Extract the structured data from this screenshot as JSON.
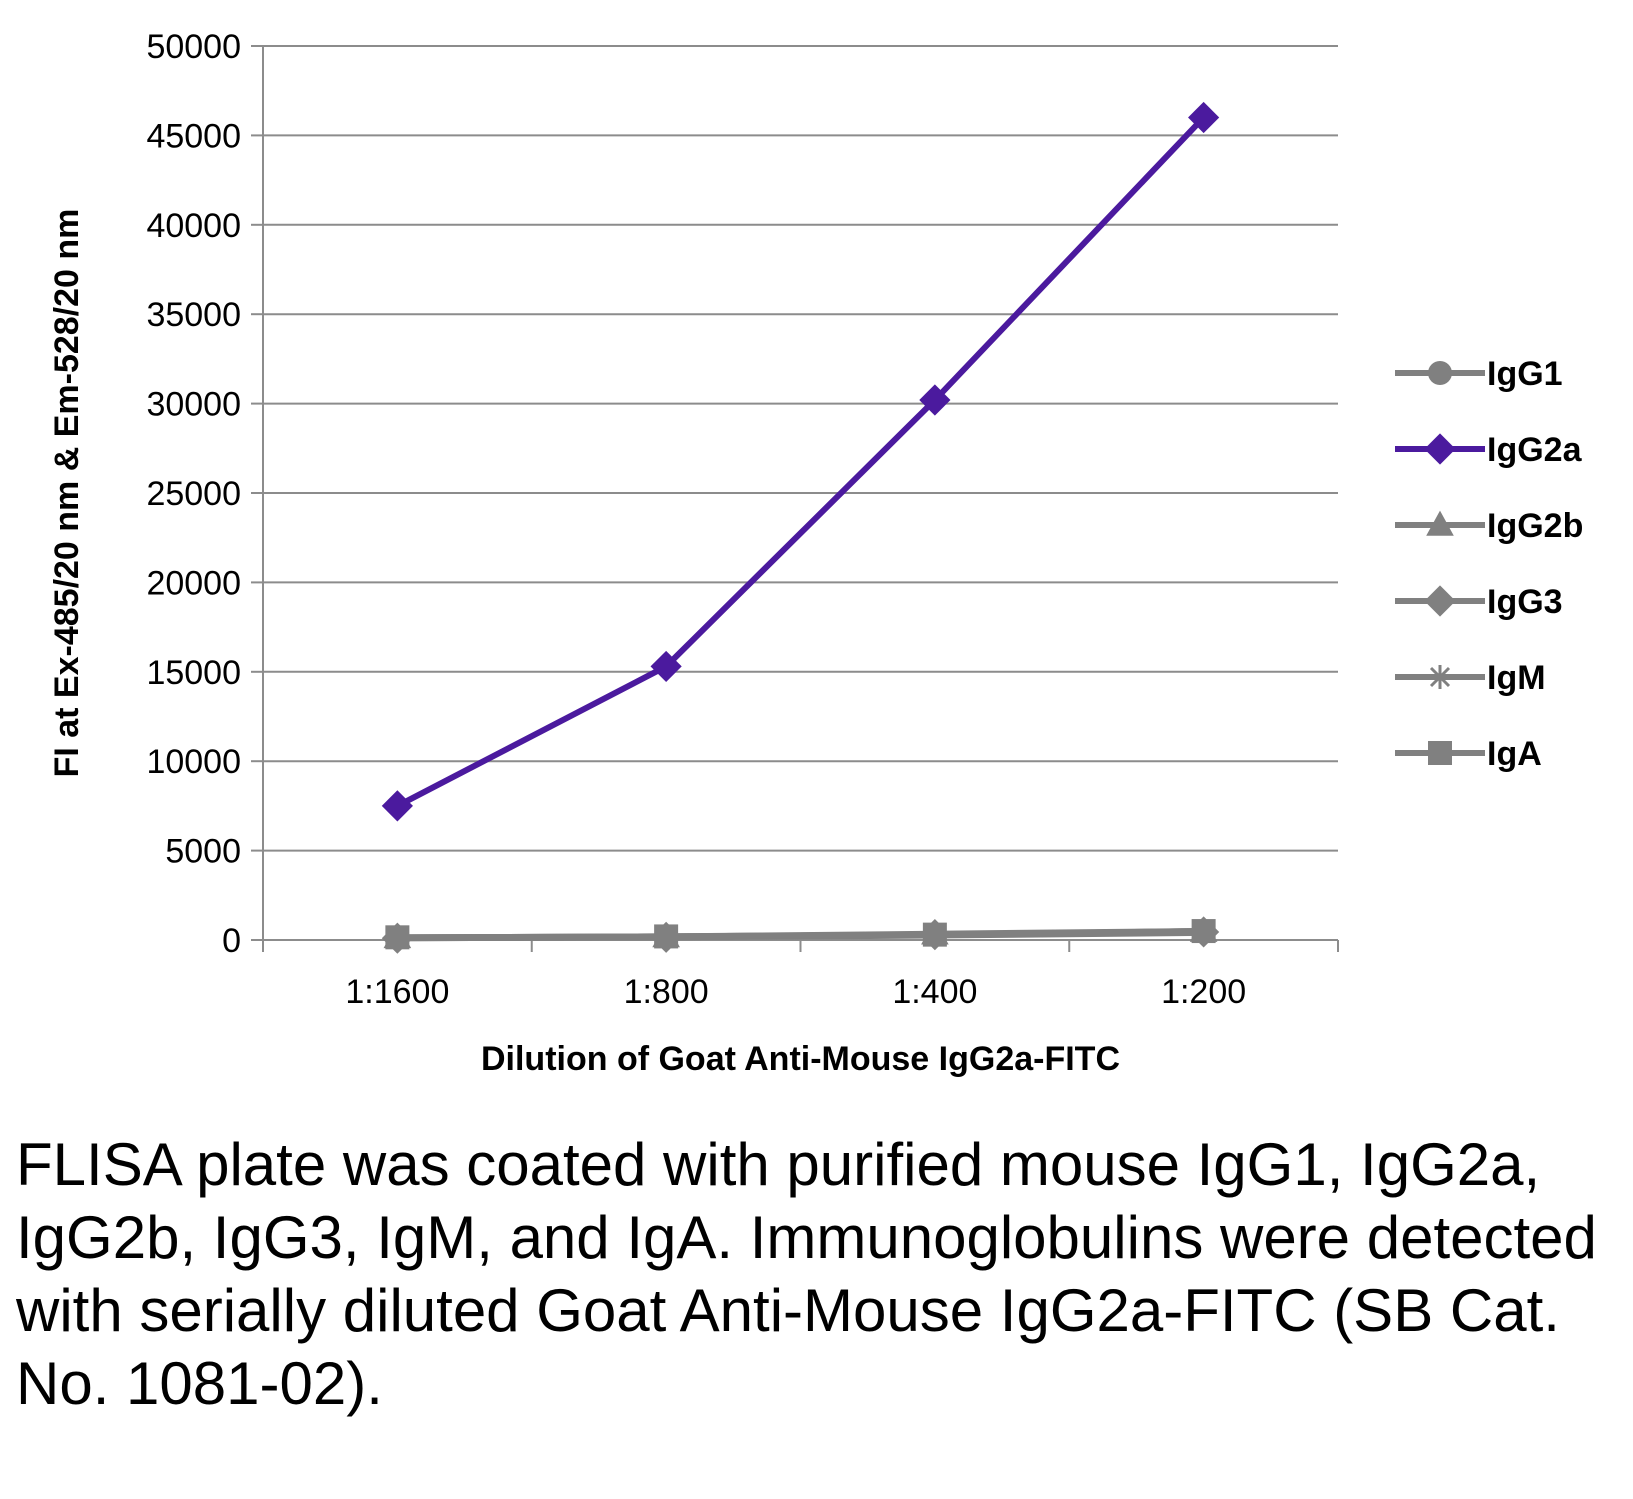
{
  "chart_data": {
    "type": "line",
    "title": "",
    "xlabel": "Dilution of Goat Anti-Mouse IgG2a-FITC",
    "ylabel": "FI at Ex-485/20 nm & Em-528/20 nm",
    "categories": [
      "1:1600",
      "1:800",
      "1:400",
      "1:200"
    ],
    "ylim": [
      0,
      50000
    ],
    "yticks": [
      "0",
      "5000",
      "10000",
      "15000",
      "20000",
      "25000",
      "30000",
      "35000",
      "40000",
      "45000",
      "50000"
    ],
    "grid": true,
    "legend_position": "right",
    "series": [
      {
        "name": "IgG1",
        "marker": "circle",
        "color": "#808080",
        "values": [
          150,
          200,
          300,
          500
        ]
      },
      {
        "name": "IgG2a",
        "marker": "diamond",
        "color": "#4B1A9E",
        "values": [
          7500,
          15300,
          30200,
          46000
        ]
      },
      {
        "name": "IgG2b",
        "marker": "triangle",
        "color": "#808080",
        "values": [
          150,
          200,
          350,
          500
        ]
      },
      {
        "name": "IgG3",
        "marker": "diamond",
        "color": "#808080",
        "values": [
          100,
          150,
          300,
          450
        ]
      },
      {
        "name": "IgM",
        "marker": "star",
        "color": "#808080",
        "values": [
          100,
          150,
          250,
          400
        ]
      },
      {
        "name": "IgA",
        "marker": "square",
        "color": "#808080",
        "values": [
          150,
          200,
          300,
          500
        ]
      }
    ]
  },
  "caption": "FLISA plate was coated with purified mouse IgG1, IgG2a, IgG2b, IgG3, IgM, and IgA. Immunoglobulins were detected with serially diluted Goat Anti-Mouse IgG2a-FITC (SB Cat. No. 1081-02)."
}
